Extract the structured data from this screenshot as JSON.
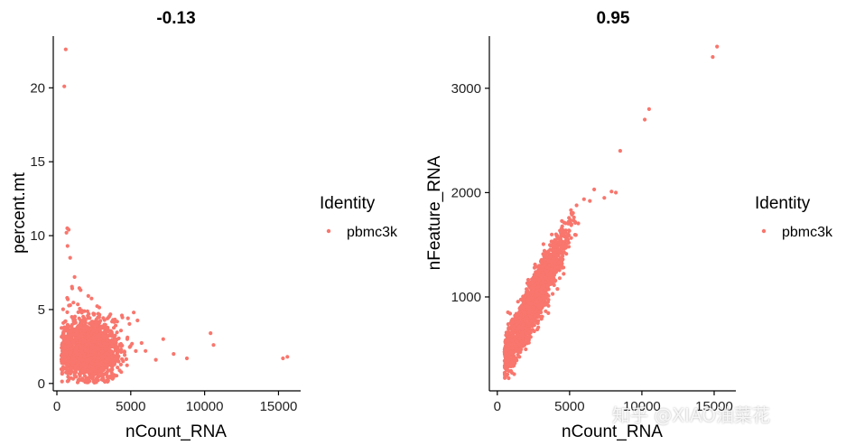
{
  "figure": {
    "watermark": "知乎 @XIAO油菜花"
  },
  "chart_data": [
    {
      "type": "scatter",
      "title": "-0.13",
      "xlabel": "nCount_RNA",
      "ylabel": "percent.mt",
      "xlim": [
        0,
        16500
      ],
      "ylim": [
        -0.5,
        23.5
      ],
      "xticks": [
        0,
        5000,
        10000,
        15000
      ],
      "yticks": [
        0,
        5,
        10,
        15,
        20
      ],
      "legend_title": "Identity",
      "legend_entries": [
        "pbmc3k"
      ],
      "point_color": "#F8766D",
      "bulk_cloud": {
        "x_center": 2200,
        "x_spread": 900,
        "y_center": 2.3,
        "y_spread": 0.9,
        "count": 2300
      },
      "outliers": [
        [
          600,
          22.6
        ],
        [
          500,
          20.1
        ],
        [
          700,
          10.5
        ],
        [
          800,
          10.4
        ],
        [
          650,
          10.2
        ],
        [
          720,
          9.3
        ],
        [
          900,
          8.5
        ],
        [
          15600,
          1.8
        ],
        [
          15300,
          1.7
        ],
        [
          10400,
          3.4
        ],
        [
          10600,
          2.6
        ],
        [
          8800,
          1.7
        ],
        [
          7200,
          3.0
        ],
        [
          6700,
          1.6
        ],
        [
          7900,
          2.0
        ],
        [
          5200,
          4.8
        ],
        [
          4400,
          4.6
        ],
        [
          6000,
          2.2
        ],
        [
          3800,
          4.3
        ],
        [
          1200,
          7.2
        ]
      ]
    },
    {
      "type": "scatter",
      "title": "0.95",
      "xlabel": "nCount_RNA",
      "ylabel": "nFeature_RNA",
      "xlim": [
        -300,
        16500
      ],
      "ylim": [
        100,
        3500
      ],
      "xticks": [
        0,
        5000,
        10000,
        15000
      ],
      "yticks": [
        1000,
        2000,
        3000
      ],
      "legend_title": "Identity",
      "legend_entries": [
        "pbmc3k"
      ],
      "point_color": "#F8766D",
      "trend": {
        "slope": 0.27,
        "intercept": 280,
        "x_center": 2400,
        "x_spread": 1100,
        "noise": 110,
        "count": 2300
      },
      "outliers": [
        [
          15200,
          3400
        ],
        [
          14900,
          3300
        ],
        [
          10500,
          2800
        ],
        [
          10200,
          2700
        ],
        [
          8500,
          2400
        ],
        [
          8200,
          2000
        ],
        [
          7900,
          2010
        ],
        [
          7400,
          1950
        ],
        [
          6700,
          2030
        ],
        [
          6400,
          1920
        ]
      ]
    }
  ]
}
